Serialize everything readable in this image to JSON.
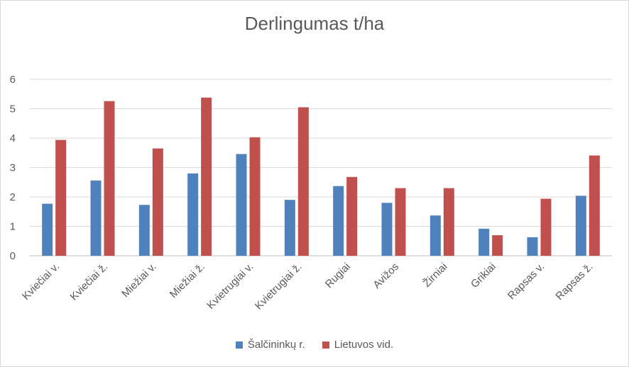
{
  "chart_data": {
    "type": "bar",
    "title": "Derlingumas t/ha",
    "xlabel": "",
    "ylabel": "",
    "ylim": [
      0,
      6
    ],
    "yticks": [
      "0",
      "1",
      "2",
      "3",
      "4",
      "5",
      "6"
    ],
    "grid": true,
    "legend_position": "bottom",
    "categories": [
      "Kviečiai v.",
      "Kviečiai ž.",
      "Miežiai v.",
      "Miežiai ž.",
      "Kvietrugiai v.",
      "Kvietrugiai ž.",
      "Rugiai",
      "Avižos",
      "Žirniai",
      "Grikiai",
      "Rapsas v.",
      "Rapsas ž."
    ],
    "series": [
      {
        "name": "Šalčininkų r.",
        "color": "#4f81bd",
        "values": [
          1.77,
          2.56,
          1.73,
          2.8,
          3.46,
          1.9,
          2.37,
          1.8,
          1.37,
          0.92,
          0.63,
          2.04
        ]
      },
      {
        "name": "Lietuvos vid.",
        "color": "#c0504d",
        "values": [
          3.94,
          5.26,
          3.65,
          5.38,
          4.03,
          5.05,
          2.68,
          2.3,
          2.3,
          0.7,
          1.94,
          3.41
        ]
      }
    ]
  }
}
